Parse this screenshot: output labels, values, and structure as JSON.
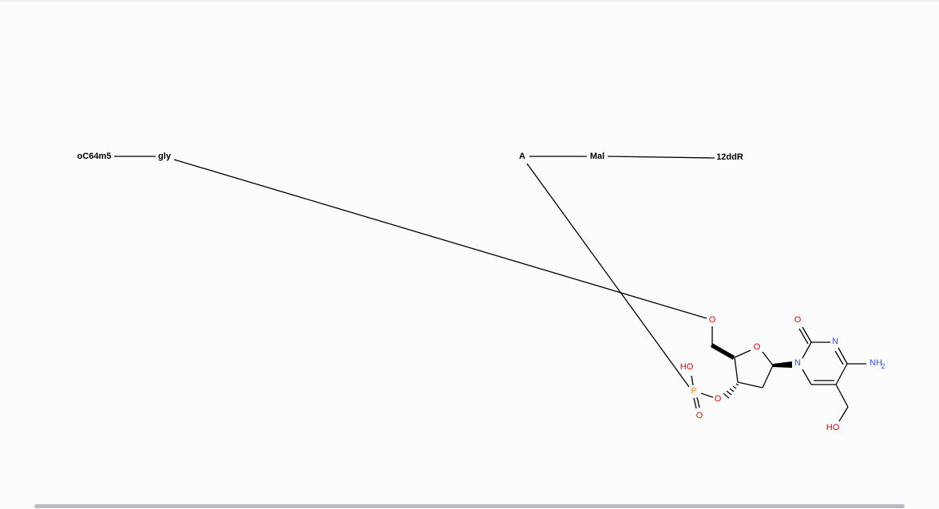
{
  "monomers": {
    "oc64m5": "oC64m5",
    "gly": "gly",
    "a": "A",
    "mal": "Mal",
    "r12dd": "12ddR"
  },
  "atoms": {
    "o_ring": "O",
    "o_5prime": "O",
    "o_3prime": "O",
    "p": "P",
    "p_ho": "HO",
    "p_o": "O",
    "n1": "N",
    "n3": "N",
    "o2": "O",
    "nh2": "NH",
    "nh2_sub": "2",
    "ho_ch2": "HO"
  },
  "colors": {
    "bond": "#000000",
    "oxygen": "#e00000",
    "nitrogen": "#3050f8",
    "phosphorus": "#ff8000",
    "background": "#fcfcfc",
    "scrollbar": "#b9bcc4"
  }
}
